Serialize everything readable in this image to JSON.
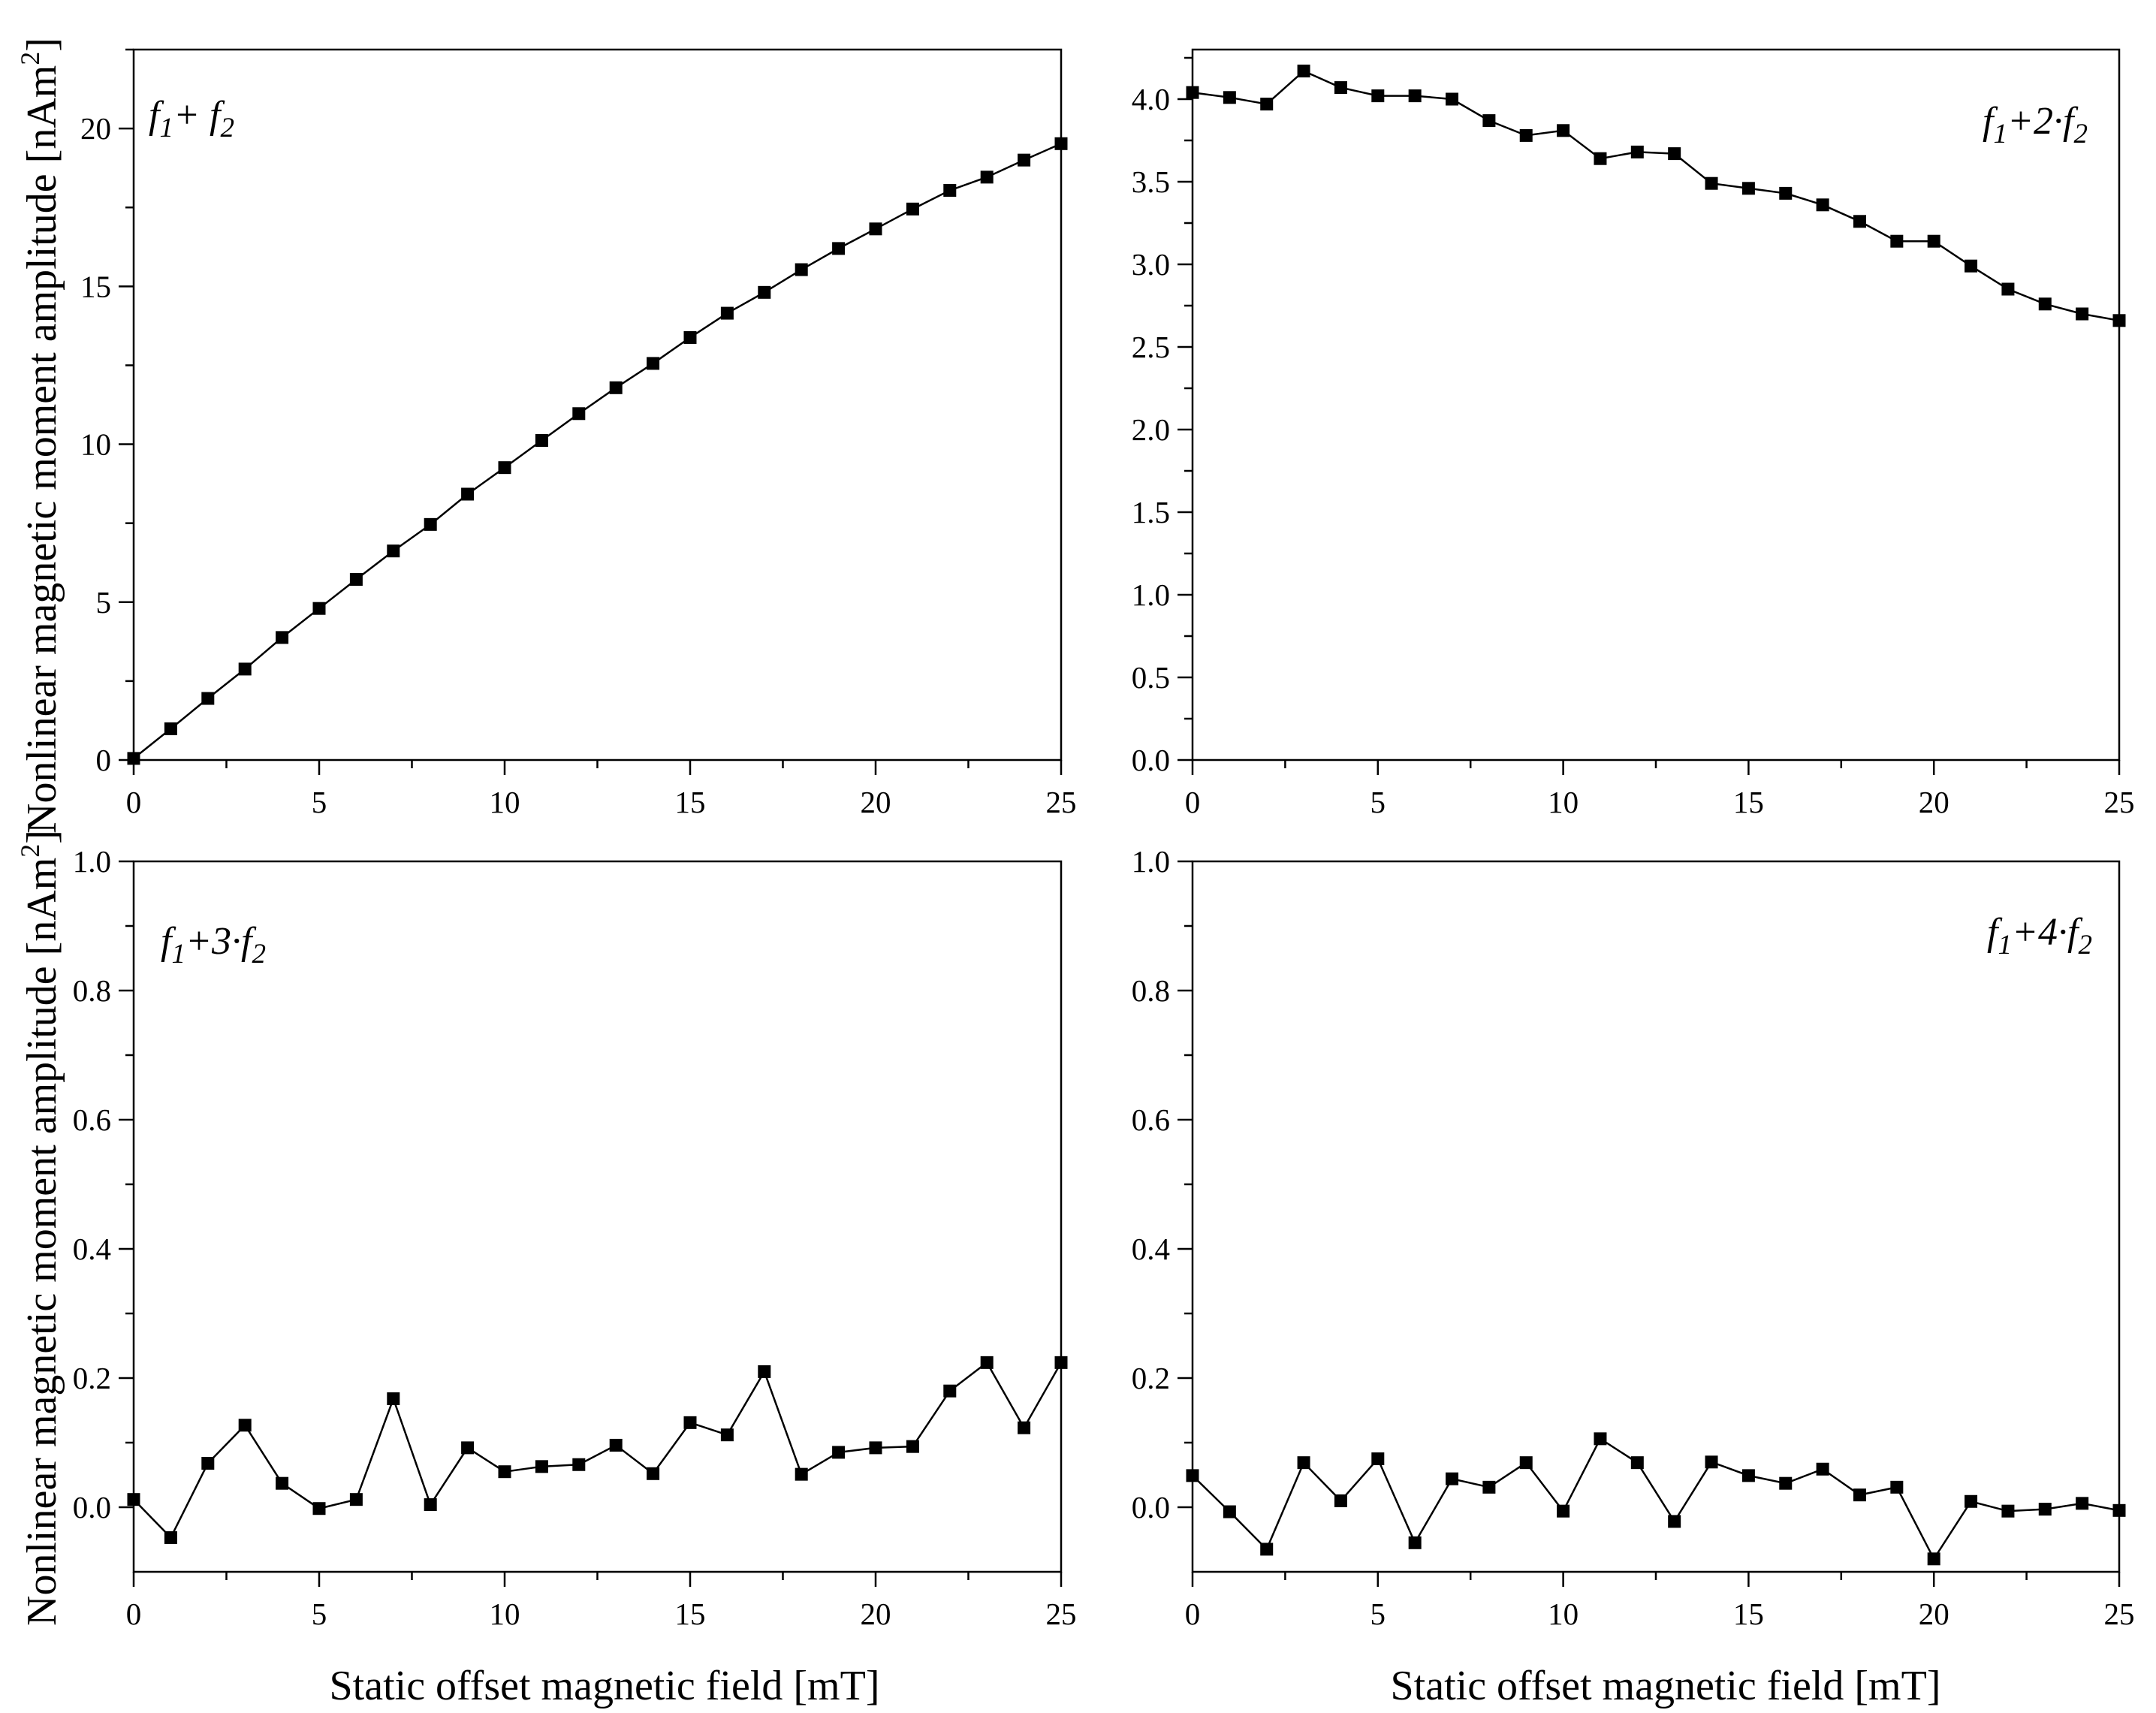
{
  "figure": {
    "ylabel": "Nonlinear magnetic moment amplitude [nAm",
    "ylabel_sup": "2",
    "ylabel_end": "]",
    "xlabel": "Static offset magnetic field [mT]"
  },
  "colors": {
    "line": "#000000",
    "marker": "#000000",
    "axis": "#000000",
    "background": "#ffffff"
  },
  "chart_data": [
    {
      "id": "p1",
      "type": "line",
      "marker": "square",
      "label_parts": [
        "f",
        "1",
        "+ ",
        "f",
        "2"
      ],
      "label_position": "top-left",
      "x": [
        0,
        1,
        2,
        3,
        4,
        5,
        6,
        7,
        8,
        9,
        10,
        11,
        12,
        13,
        14,
        15,
        16,
        17,
        18,
        19,
        20,
        21,
        22,
        23,
        24,
        25
      ],
      "y": [
        0.05,
        0.99,
        1.95,
        2.88,
        3.88,
        4.8,
        5.72,
        6.62,
        7.46,
        8.42,
        9.26,
        10.12,
        10.97,
        11.79,
        12.56,
        13.38,
        14.15,
        14.81,
        15.53,
        16.2,
        16.82,
        17.45,
        18.04,
        18.46,
        19.0,
        19.52
      ],
      "xlim": [
        0,
        25
      ],
      "ylim": [
        0,
        22.5
      ],
      "xticks": [
        0,
        5,
        10,
        15,
        20,
        25
      ],
      "xtick_labels": [
        "0",
        "5",
        "10",
        "15",
        "20",
        "25"
      ],
      "yticks": [
        0,
        5,
        10,
        15,
        20
      ],
      "ytick_labels": [
        "0",
        "5",
        "10",
        "15",
        "20"
      ],
      "yminor": [
        2.5,
        7.5,
        12.5,
        17.5,
        22.5
      ]
    },
    {
      "id": "p2",
      "type": "line",
      "marker": "square",
      "label_parts": [
        "f",
        "1",
        "+2·",
        "f",
        "2"
      ],
      "label_position": "top-right",
      "x": [
        0,
        1,
        2,
        3,
        4,
        5,
        6,
        7,
        8,
        9,
        10,
        11,
        12,
        13,
        14,
        15,
        16,
        17,
        18,
        19,
        20,
        21,
        22,
        23,
        24,
        25
      ],
      "y": [
        4.04,
        4.01,
        3.97,
        4.17,
        4.07,
        4.02,
        4.02,
        4.0,
        3.87,
        3.78,
        3.81,
        3.64,
        3.68,
        3.67,
        3.49,
        3.46,
        3.43,
        3.36,
        3.26,
        3.14,
        3.14,
        2.99,
        2.85,
        2.76,
        2.7,
        2.66
      ],
      "xlim": [
        0,
        25
      ],
      "ylim": [
        0,
        4.3
      ],
      "xticks": [
        0,
        5,
        10,
        15,
        20,
        25
      ],
      "xtick_labels": [
        "0",
        "5",
        "10",
        "15",
        "20",
        "25"
      ],
      "yticks": [
        0,
        0.5,
        1,
        1.5,
        2,
        2.5,
        3,
        3.5,
        4
      ],
      "ytick_labels": [
        "0.0",
        "0.5",
        "1.0",
        "1.5",
        "2.0",
        "2.5",
        "3.0",
        "3.5",
        "4.0"
      ],
      "yminor": [
        0.25,
        0.75,
        1.25,
        1.75,
        2.25,
        2.75,
        3.25,
        3.75,
        4.25
      ]
    },
    {
      "id": "p3",
      "type": "line",
      "marker": "square",
      "label_parts": [
        "f",
        "1",
        "+3·",
        "f",
        "2"
      ],
      "label_position": "top-left",
      "x": [
        0,
        1,
        2,
        3,
        4,
        5,
        6,
        7,
        8,
        9,
        10,
        11,
        12,
        13,
        14,
        15,
        16,
        17,
        18,
        19,
        20,
        21,
        22,
        23,
        24,
        25
      ],
      "y": [
        0.012,
        -0.047,
        0.068,
        0.127,
        0.037,
        -0.002,
        0.012,
        0.168,
        0.004,
        0.092,
        0.055,
        0.063,
        0.066,
        0.096,
        0.052,
        0.131,
        0.112,
        0.21,
        0.051,
        0.085,
        0.092,
        0.094,
        0.18,
        0.224,
        0.123,
        0.224
      ],
      "xlim": [
        0,
        25
      ],
      "ylim": [
        -0.1,
        1.0
      ],
      "xticks": [
        0,
        5,
        10,
        15,
        20,
        25
      ],
      "xtick_labels": [
        "0",
        "5",
        "10",
        "15",
        "20",
        "25"
      ],
      "yticks": [
        0,
        0.2,
        0.4,
        0.6,
        0.8,
        1.0
      ],
      "ytick_labels": [
        "0.0",
        "0.2",
        "0.4",
        "0.6",
        "0.8",
        "1.0"
      ],
      "yminor": [
        0.1,
        0.3,
        0.5,
        0.7,
        0.9
      ]
    },
    {
      "id": "p4",
      "type": "line",
      "marker": "square",
      "label_parts": [
        "f",
        "1",
        "+4·",
        "f",
        "2"
      ],
      "label_position": "top-right",
      "x": [
        0,
        1,
        2,
        3,
        4,
        5,
        6,
        7,
        8,
        9,
        10,
        11,
        12,
        13,
        14,
        15,
        16,
        17,
        18,
        19,
        20,
        21,
        22,
        23,
        24,
        25
      ],
      "y": [
        0.049,
        -0.007,
        -0.065,
        0.069,
        0.01,
        0.075,
        -0.055,
        0.044,
        0.031,
        0.069,
        -0.006,
        0.106,
        0.069,
        -0.022,
        0.07,
        0.049,
        0.037,
        0.059,
        0.019,
        0.031,
        -0.08,
        0.009,
        -0.006,
        -0.003,
        0.006,
        -0.005
      ],
      "xlim": [
        0,
        25
      ],
      "ylim": [
        -0.1,
        1.0
      ],
      "xticks": [
        0,
        5,
        10,
        15,
        20,
        25
      ],
      "xtick_labels": [
        "0",
        "5",
        "10",
        "15",
        "20",
        "25"
      ],
      "yticks": [
        0,
        0.2,
        0.4,
        0.6,
        0.8,
        1.0
      ],
      "ytick_labels": [
        "0.0",
        "0.2",
        "0.4",
        "0.6",
        "0.8",
        "1.0"
      ],
      "yminor": [
        0.1,
        0.3,
        0.5,
        0.7,
        0.9
      ]
    }
  ]
}
